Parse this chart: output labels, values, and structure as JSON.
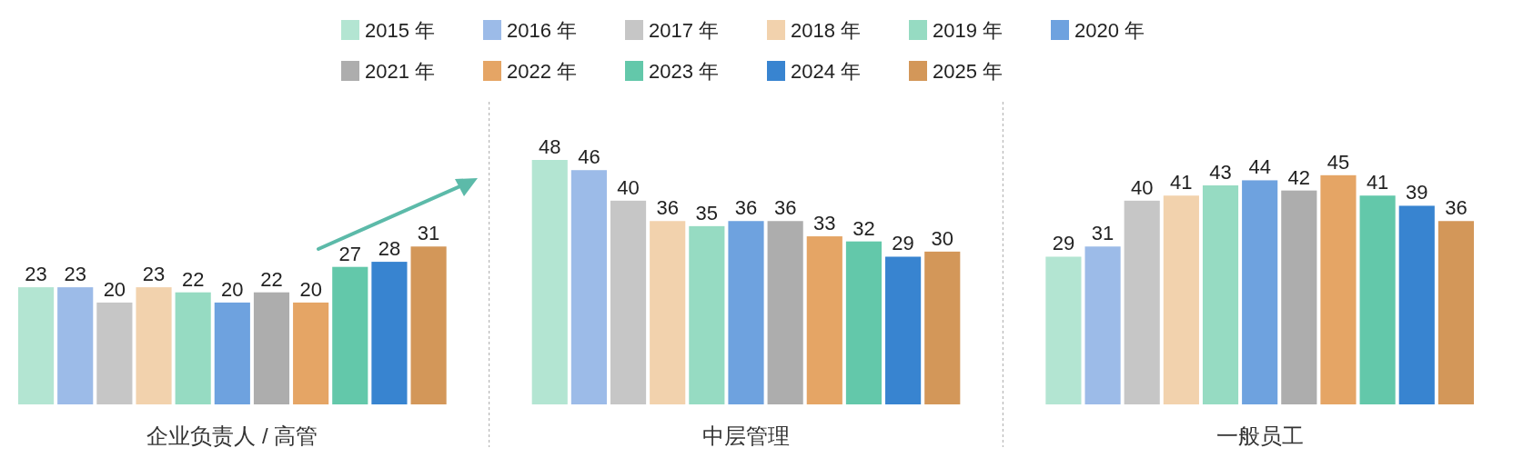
{
  "chart_data": {
    "type": "bar",
    "categories": [
      "企业负责人 / 高管",
      "中层管理",
      "一般员工"
    ],
    "series": [
      {
        "name": "2015 年",
        "color": "#b3e5d2",
        "values": [
          23,
          48,
          29
        ]
      },
      {
        "name": "2016 年",
        "color": "#9cbbe8",
        "values": [
          23,
          46,
          31
        ]
      },
      {
        "name": "2017 年",
        "color": "#c6c6c6",
        "values": [
          20,
          40,
          40
        ]
      },
      {
        "name": "2018 年",
        "color": "#f2d2ad",
        "values": [
          23,
          36,
          41
        ]
      },
      {
        "name": "2019 年",
        "color": "#96dbc2",
        "values": [
          22,
          35,
          43
        ]
      },
      {
        "name": "2020 年",
        "color": "#6ea2df",
        "values": [
          20,
          36,
          44
        ]
      },
      {
        "name": "2021 年",
        "color": "#adadad",
        "values": [
          22,
          36,
          42
        ]
      },
      {
        "name": "2022 年",
        "color": "#e5a565",
        "values": [
          20,
          33,
          45
        ]
      },
      {
        "name": "2023 年",
        "color": "#63c8aa",
        "values": [
          27,
          32,
          41
        ]
      },
      {
        "name": "2024 年",
        "color": "#3884d0",
        "values": [
          28,
          29,
          39
        ]
      },
      {
        "name": "2025 年",
        "color": "#d39759",
        "values": [
          31,
          30,
          36
        ]
      }
    ],
    "data_labels": true,
    "legend": "top"
  }
}
